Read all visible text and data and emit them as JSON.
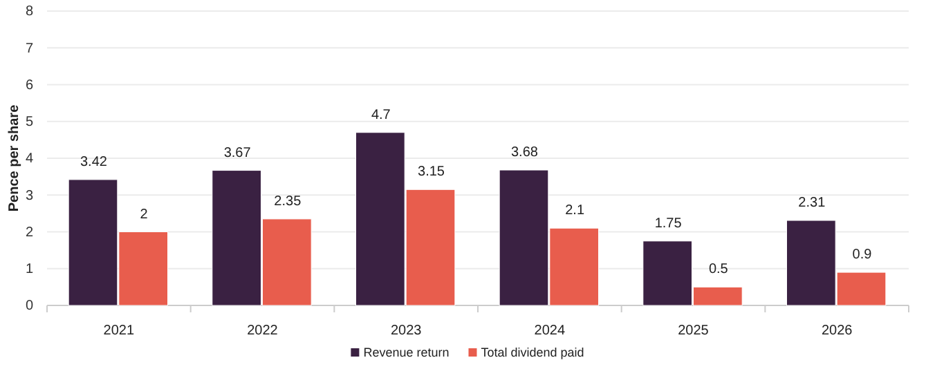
{
  "chart_data": {
    "type": "bar",
    "ylabel": "Pence per share",
    "categories": [
      "2021",
      "2022",
      "2023",
      "2024",
      "2025",
      "2026"
    ],
    "series": [
      {
        "name": "Revenue return",
        "color": "#3a2142",
        "values": [
          3.42,
          3.67,
          4.7,
          3.68,
          1.75,
          2.31
        ]
      },
      {
        "name": "Total dividend paid",
        "color": "#e85d4d",
        "values": [
          2,
          2.35,
          3.15,
          2.1,
          0.5,
          0.9
        ]
      }
    ],
    "ylim": [
      0,
      8
    ],
    "yticks": [
      0,
      1,
      2,
      3,
      4,
      5,
      6,
      7,
      8
    ],
    "grid": "y",
    "legend": "bottom",
    "data_labels": true
  }
}
